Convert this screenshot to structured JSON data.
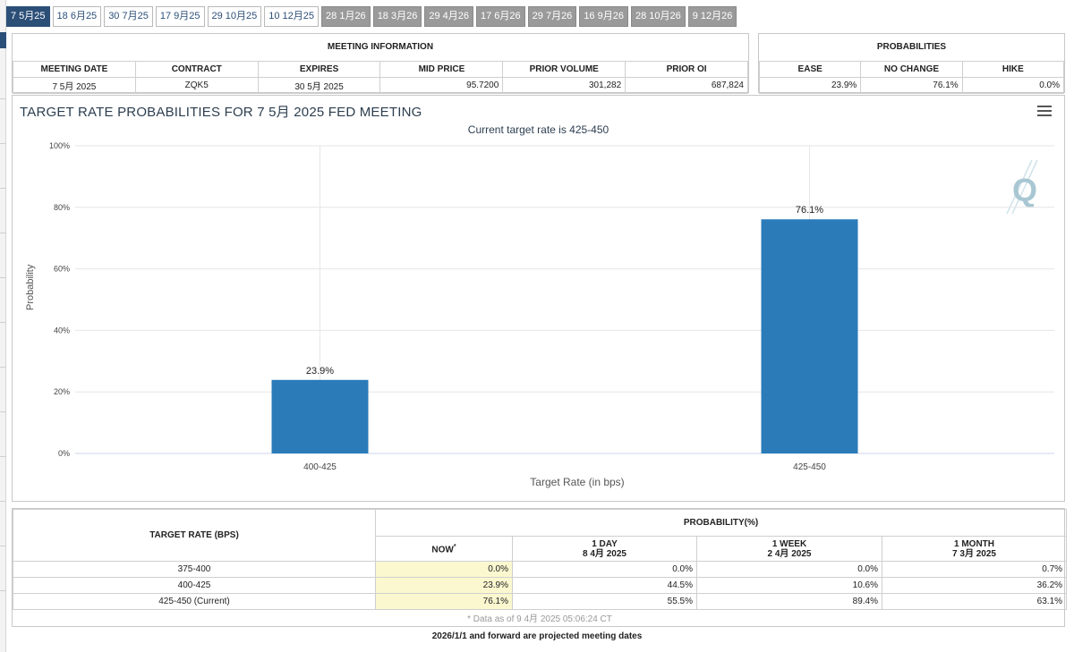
{
  "tabs": [
    {
      "label": "7 5月25",
      "state": "active"
    },
    {
      "label": "18 6月25",
      "state": "normal"
    },
    {
      "label": "30 7月25",
      "state": "normal"
    },
    {
      "label": "17 9月25",
      "state": "normal"
    },
    {
      "label": "29 10月25",
      "state": "normal"
    },
    {
      "label": "10 12月25",
      "state": "normal"
    },
    {
      "label": "28 1月26",
      "state": "projected"
    },
    {
      "label": "18 3月26",
      "state": "projected"
    },
    {
      "label": "29 4月26",
      "state": "projected"
    },
    {
      "label": "17 6月26",
      "state": "projected"
    },
    {
      "label": "29 7月26",
      "state": "projected"
    },
    {
      "label": "16 9月26",
      "state": "projected"
    },
    {
      "label": "28 10月26",
      "state": "projected"
    },
    {
      "label": "9 12月26",
      "state": "projected"
    }
  ],
  "meeting_info": {
    "title": "MEETING INFORMATION",
    "headers": [
      "MEETING DATE",
      "CONTRACT",
      "EXPIRES",
      "MID PRICE",
      "PRIOR VOLUME",
      "PRIOR OI"
    ],
    "row": [
      "7 5月 2025",
      "ZQK5",
      "30 5月 2025",
      "95.7200",
      "301,282",
      "687,824"
    ]
  },
  "probabilities": {
    "title": "PROBABILITIES",
    "headers": [
      "EASE",
      "NO CHANGE",
      "HIKE"
    ],
    "row": [
      "23.9%",
      "76.1%",
      "0.0%"
    ]
  },
  "chart_data": {
    "type": "bar",
    "title": "TARGET RATE PROBABILITIES FOR 7 5月 2025 FED MEETING",
    "subtitle": "Current target rate is 425-450",
    "xlabel": "Target Rate (in bps)",
    "ylabel": "Probability",
    "categories": [
      "400-425",
      "425-450"
    ],
    "values": [
      23.9,
      76.1
    ],
    "data_labels": [
      "23.9%",
      "76.1%"
    ],
    "ylim": [
      0,
      100
    ],
    "yticks": [
      "0%",
      "20%",
      "40%",
      "60%",
      "80%",
      "100%"
    ],
    "bar_color": "#2b7bb9",
    "grid": true,
    "legend": "none"
  },
  "rate_table": {
    "target_header": "TARGET RATE (BPS)",
    "prob_header": "PROBABILITY(%)",
    "columns": [
      {
        "line1": "NOW",
        "line2": "",
        "star": "*"
      },
      {
        "line1": "1 DAY",
        "line2": "8 4月 2025",
        "star": ""
      },
      {
        "line1": "1 WEEK",
        "line2": "2 4月 2025",
        "star": ""
      },
      {
        "line1": "1 MONTH",
        "line2": "7 3月 2025",
        "star": ""
      }
    ],
    "rows": [
      {
        "rate": "375-400",
        "values": [
          "0.0%",
          "0.0%",
          "0.0%",
          "0.7%"
        ]
      },
      {
        "rate": "400-425",
        "values": [
          "23.9%",
          "44.5%",
          "10.6%",
          "36.2%"
        ]
      },
      {
        "rate": "425-450 (Current)",
        "values": [
          "76.1%",
          "55.5%",
          "89.4%",
          "63.1%"
        ]
      }
    ],
    "note": "* Data as of 9 4月 2025 05:06:24 CT"
  },
  "footer": "2026/1/1 and forward are projected meeting dates",
  "colors": {
    "accent": "#2c4f78",
    "projected": "#9a9a9a",
    "now_highlight": "#fbf8d0"
  }
}
